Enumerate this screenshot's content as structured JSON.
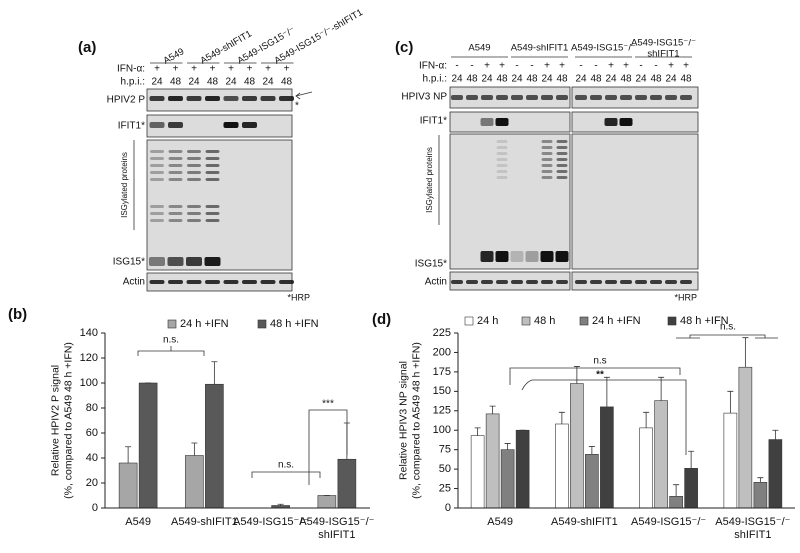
{
  "panels": [
    "(a)",
    "(b)",
    "(c)",
    "(d)"
  ],
  "blot_a": {
    "groups": [
      "A549",
      "A549-shIFIT1",
      "A549-ISG15⁻/⁻",
      "A549-ISG15⁻/⁻-shIFIT1"
    ],
    "ifn_label": "IFN-α:",
    "hpi_label": "h.p.i.:",
    "ifn": [
      "+",
      "+",
      "+",
      "+",
      "+",
      "+",
      "+",
      "+"
    ],
    "hpi": [
      "24",
      "48",
      "24",
      "48",
      "24",
      "48",
      "24",
      "48"
    ],
    "rows": [
      "HPIV2 P",
      "IFIT1*",
      "ISGylated proteins",
      "ISG15*",
      "Actin"
    ],
    "marker": "*",
    "footnote": "*HRP"
  },
  "blot_c": {
    "groups": [
      "A549",
      "A549-shIFIT1",
      "A549-ISG15⁻/⁻",
      "A549-ISG15⁻/⁻\nshIFIT1"
    ],
    "ifn_label": "IFN-α:",
    "hpi_label": "h.p.i.:",
    "ifn": [
      "-",
      "-",
      "+",
      "+",
      "-",
      "-",
      "+",
      "+",
      "-",
      "-",
      "+",
      "+",
      "-",
      "-",
      "+",
      "+"
    ],
    "hpi": [
      "24",
      "48",
      "24",
      "48",
      "24",
      "48",
      "24",
      "48",
      "24",
      "48",
      "24",
      "48",
      "24",
      "48",
      "24",
      "48"
    ],
    "rows": [
      "HPIV3 NP",
      "IFIT1*",
      "ISGylated proteins",
      "ISG15*",
      "Actin"
    ],
    "footnote": "*HRP"
  },
  "chart_data": [
    {
      "type": "bar",
      "ylabel": "Relative HPIV2 P signal\n(%, compared to A549 48 h +IFN)",
      "categories": [
        "A549",
        "A549-shIFIT1",
        "A549-ISG15⁻/⁻",
        "A549-ISG15⁻/⁻\nshIFIT1"
      ],
      "series": [
        {
          "name": "24 h +IFN",
          "color": "#a6a6a6",
          "values": [
            36,
            42,
            0,
            10
          ],
          "errors": [
            13,
            10,
            0,
            0
          ]
        },
        {
          "name": "48 h +IFN",
          "color": "#595959",
          "values": [
            100,
            99,
            2,
            39
          ],
          "errors": [
            0,
            18,
            1,
            29
          ]
        }
      ],
      "ylim": [
        0,
        140
      ],
      "yticks": [
        0,
        20,
        40,
        60,
        80,
        100,
        120,
        140
      ],
      "annotations": [
        "n.s.",
        "***",
        "n.s."
      ]
    },
    {
      "type": "bar",
      "ylabel": "Relative HPIV3 NP signal\n(%, compared to A549 48 h +IFN)",
      "categories": [
        "A549",
        "A549-shIFIT1",
        "A549-ISG15⁻/⁻",
        "A549-ISG15⁻/⁻\nshIFIT1"
      ],
      "series": [
        {
          "name": "24 h",
          "color": "#ffffff",
          "values": [
            93,
            108,
            103,
            122
          ],
          "errors": [
            10,
            15,
            20,
            28
          ]
        },
        {
          "name": "48 h",
          "color": "#bfbfbf",
          "values": [
            121,
            160,
            138,
            181
          ],
          "errors": [
            10,
            22,
            30,
            38
          ]
        },
        {
          "name": "24 h +IFN",
          "color": "#808080",
          "values": [
            75,
            69,
            15,
            33
          ],
          "errors": [
            8,
            10,
            15,
            6
          ]
        },
        {
          "name": "48 h +IFN",
          "color": "#404040",
          "values": [
            100,
            130,
            51,
            88
          ],
          "errors": [
            0,
            38,
            22,
            12
          ]
        }
      ],
      "ylim": [
        0,
        225
      ],
      "yticks": [
        0,
        25,
        50,
        75,
        100,
        125,
        150,
        175,
        200,
        225
      ],
      "annotations": [
        "n.s",
        "**",
        "n.s."
      ]
    }
  ]
}
